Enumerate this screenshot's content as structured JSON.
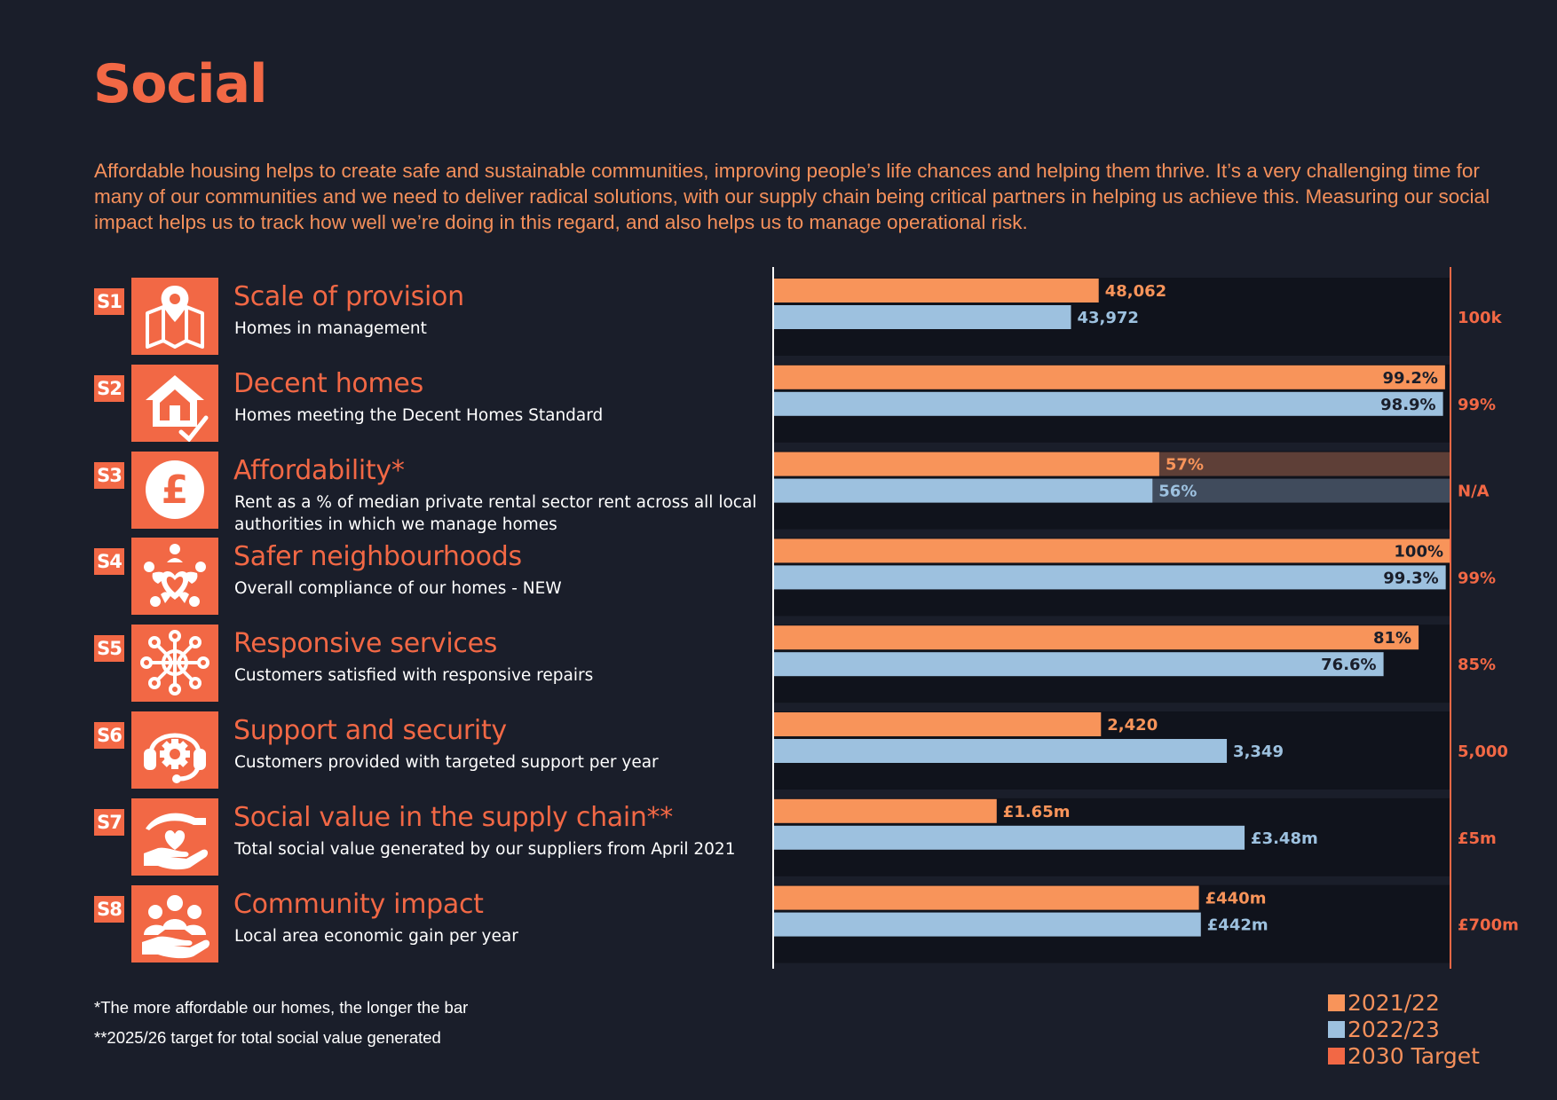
{
  "page": {
    "title": "Social",
    "intro": "Affordable housing helps to create safe and sustainable communities, improving people’s life chances and helping them thrive. It’s a very challenging time for many of our communities and we need to deliver radical solutions, with our supply chain being critical partners in helping us achieve this. Measuring our social impact helps us to track how well we’re doing in this regard, and also helps us to manage operational risk.",
    "footnotes": [
      "*The more affordable our homes, the longer the bar",
      "**2025/26 target for total social value generated"
    ]
  },
  "colors": {
    "background": "#1a1e2a",
    "panel": "#10131c",
    "accent": "#f26845",
    "series_2021": "#f8945a",
    "series_2022": "#9dc1df",
    "label_dark": "#1a1e2a",
    "na_bar_2021": "#5e3f37",
    "na_bar_2022": "#404b5c"
  },
  "metrics": [
    {
      "code": "S1",
      "icon": "map-pin-icon",
      "title": "Scale of provision",
      "subtitle": "Homes in management"
    },
    {
      "code": "S2",
      "icon": "house-check-icon",
      "title": "Decent homes",
      "subtitle": "Homes meeting the Decent Homes Standard"
    },
    {
      "code": "S3",
      "icon": "pound-coin-icon",
      "title": "Affordability*",
      "subtitle": "Rent as a % of median private rental sector rent across all local authorities in which we manage homes"
    },
    {
      "code": "S4",
      "icon": "heart-people-icon",
      "title": "Safer neighbourhoods",
      "subtitle": "Overall compliance of our homes - NEW"
    },
    {
      "code": "S5",
      "icon": "network-globe-icon",
      "title": "Responsive services",
      "subtitle": "Customers satisfied with responsive repairs"
    },
    {
      "code": "S6",
      "icon": "headset-gear-icon",
      "title": "Support and security",
      "subtitle": "Customers provided with targeted support per year"
    },
    {
      "code": "S7",
      "icon": "hands-heart-icon",
      "title": "Social value in the supply chain**",
      "subtitle": "Total social value generated by our suppliers from April 2021"
    },
    {
      "code": "S8",
      "icon": "community-people-icon",
      "title": "Community impact",
      "subtitle": "Local area economic gain per year"
    }
  ],
  "chart_data": {
    "type": "bar",
    "orientation": "horizontal",
    "categories": [
      "S1",
      "S2",
      "S3",
      "S4",
      "S5",
      "S6",
      "S7",
      "S8"
    ],
    "series": [
      {
        "name": "2021/22",
        "values": [
          48062,
          99.2,
          57,
          100,
          81,
          2420,
          1.65,
          440
        ],
        "labels": [
          "48,062",
          "99.2%",
          "57%",
          "100%",
          "81%",
          "2,420",
          "£1.65m",
          "£440m"
        ]
      },
      {
        "name": "2022/23",
        "values": [
          43972,
          98.9,
          56,
          99.3,
          76.6,
          3349,
          3.48,
          442
        ],
        "labels": [
          "43,972",
          "98.9%",
          "56%",
          "99.3%",
          "76.6%",
          "3,349",
          "£3.48m",
          "£442m"
        ]
      },
      {
        "name": "2030 Target",
        "values": [
          100000,
          99,
          null,
          99,
          85,
          5000,
          5,
          700
        ],
        "labels": [
          "100k",
          "99%",
          "N/A",
          "99%",
          "85%",
          "5,000",
          "£5m",
          "£700m"
        ]
      }
    ],
    "legend": {
      "placement": "bottom-right",
      "entries": [
        "2021/22",
        "2022/23",
        "2030 Target"
      ]
    }
  }
}
